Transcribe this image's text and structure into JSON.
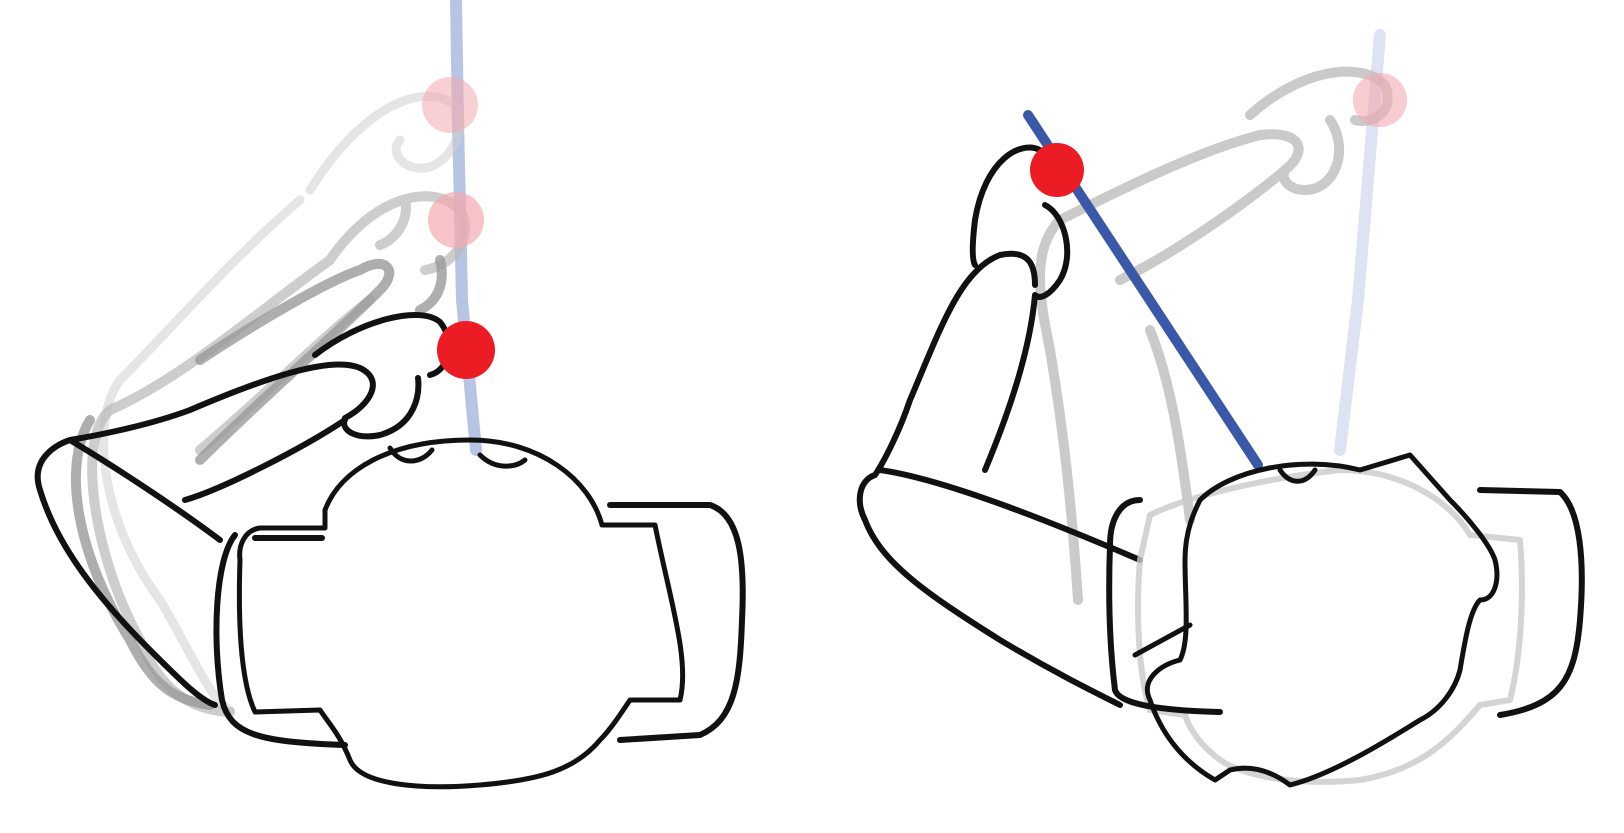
{
  "figure": {
    "panels": [
      {
        "id": "left",
        "depicts": "arm-pose-sequence-vertical-trajectory"
      },
      {
        "id": "right",
        "depicts": "arm-pose-sequence-tilted-trajectory"
      }
    ]
  },
  "colors": {
    "background": "#ffffff",
    "outline": "#111111",
    "ghost_outline_dark": "#9a9a9a",
    "ghost_outline_light": "#cfcfcf",
    "end_effector": "#ec1c24",
    "end_effector_ghost": "#f3aab0",
    "trajectory": "#3a57a8",
    "trajectory_faded": "#b7c4e3"
  },
  "icons": [
    "robot-base",
    "robot-arm",
    "end-effector-marker",
    "trajectory-line"
  ]
}
